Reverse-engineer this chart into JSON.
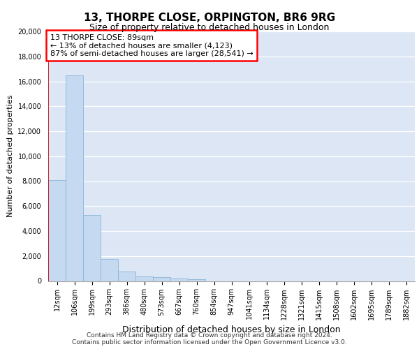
{
  "title1": "13, THORPE CLOSE, ORPINGTON, BR6 9RG",
  "title2": "Size of property relative to detached houses in London",
  "xlabel": "Distribution of detached houses by size in London",
  "ylabel": "Number of detached properties",
  "categories": [
    "12sqm",
    "106sqm",
    "199sqm",
    "293sqm",
    "386sqm",
    "480sqm",
    "573sqm",
    "667sqm",
    "760sqm",
    "854sqm",
    "947sqm",
    "1041sqm",
    "1134sqm",
    "1228sqm",
    "1321sqm",
    "1415sqm",
    "1508sqm",
    "1602sqm",
    "1695sqm",
    "1789sqm",
    "1882sqm"
  ],
  "values": [
    8100,
    16500,
    5300,
    1750,
    780,
    370,
    280,
    200,
    150,
    0,
    0,
    0,
    0,
    0,
    0,
    0,
    0,
    0,
    0,
    0,
    0
  ],
  "bar_color": "#c5d9f0",
  "bar_edge_color": "#8ab4d8",
  "annotation_line1": "13 THORPE CLOSE: 89sqm",
  "annotation_line2": "← 13% of detached houses are smaller (4,123)",
  "annotation_line3": "87% of semi-detached houses are larger (28,541) →",
  "vline_color": "#cc0000",
  "ylim": [
    0,
    20000
  ],
  "yticks": [
    0,
    2000,
    4000,
    6000,
    8000,
    10000,
    12000,
    14000,
    16000,
    18000,
    20000
  ],
  "background_color": "#dce6f5",
  "footnote1": "Contains HM Land Registry data © Crown copyright and database right 2024.",
  "footnote2": "Contains public sector information licensed under the Open Government Licence v3.0.",
  "title1_fontsize": 11,
  "title2_fontsize": 9,
  "ylabel_fontsize": 8,
  "xlabel_fontsize": 9,
  "tick_fontsize": 7,
  "annot_fontsize": 8
}
